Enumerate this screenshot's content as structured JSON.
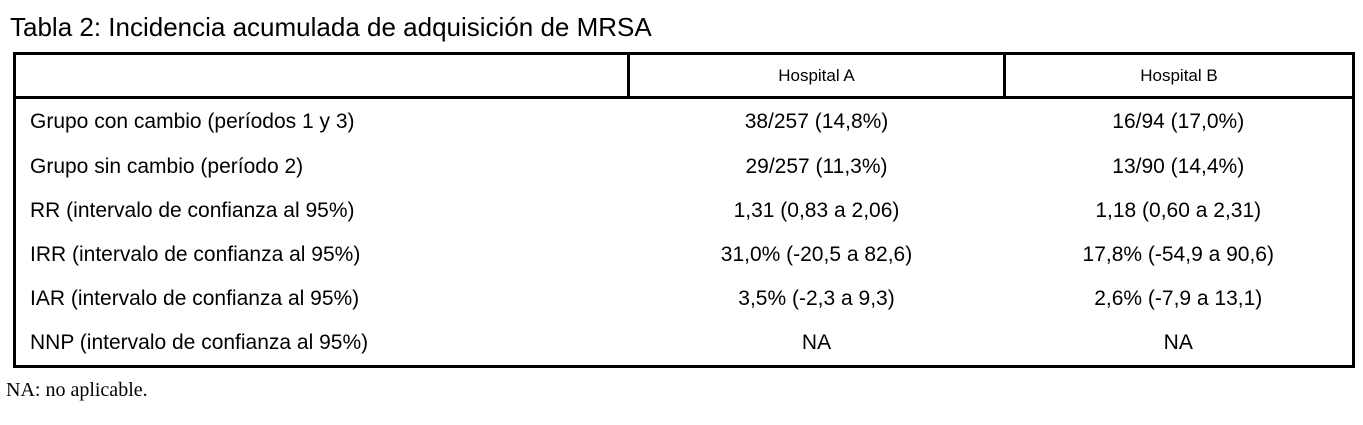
{
  "title": "Tabla 2: Incidencia acumulada de adquisición de MRSA",
  "table": {
    "columns": [
      "",
      "Hospital A",
      "Hospital B"
    ],
    "rows": [
      {
        "label": "Grupo con cambio (períodos 1 y 3)",
        "hospital_a": "38/257 (14,8%)",
        "hospital_b": "16/94 (17,0%)"
      },
      {
        "label": "Grupo sin cambio (período 2)",
        "hospital_a": "29/257 (11,3%)",
        "hospital_b": "13/90 (14,4%)"
      },
      {
        "label": "RR (intervalo de confianza al 95%)",
        "hospital_a": "1,31 (0,83 a 2,06)",
        "hospital_b": "1,18 (0,60 a 2,31)"
      },
      {
        "label": "IRR (intervalo de confianza al 95%)",
        "hospital_a": "31,0% (-20,5 a 82,6)",
        "hospital_b": "17,8% (-54,9 a 90,6)"
      },
      {
        "label": "IAR (intervalo de confianza al 95%)",
        "hospital_a": "3,5% (-2,3 a 9,3)",
        "hospital_b": "2,6% (-7,9 a 13,1)"
      },
      {
        "label": "NNP (intervalo de confianza al 95%)",
        "hospital_a": "NA",
        "hospital_b": "NA"
      }
    ]
  },
  "footnote": "NA: no aplicable.",
  "colors": {
    "text": "#000000",
    "border": "#000000",
    "background": "#ffffff"
  }
}
